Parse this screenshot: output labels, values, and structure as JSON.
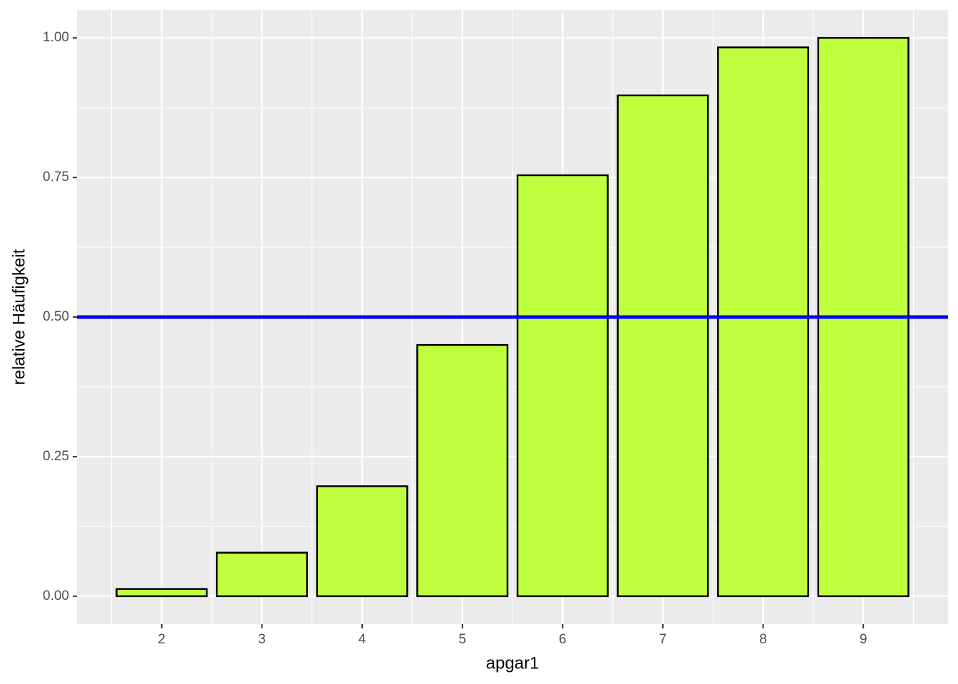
{
  "chart_data": {
    "type": "bar",
    "x_label": "apgar1",
    "y_label": "relative Häufigkeit",
    "x": [
      2,
      3,
      4,
      5,
      6,
      7,
      8,
      9
    ],
    "values": [
      0.013,
      0.078,
      0.197,
      0.45,
      0.754,
      0.897,
      0.983,
      1.0
    ],
    "color": "#c0ff3e",
    "edge_color": "#000000",
    "xlim": [
      1.155,
      9.845
    ],
    "xticks": [
      2,
      3,
      4,
      5,
      6,
      7,
      8,
      9
    ],
    "ylim": [
      -0.05,
      1.05
    ],
    "yticks": [
      {
        "value": 0,
        "label": "0.00"
      },
      {
        "value": 0.25,
        "label": "0.25"
      },
      {
        "value": 0.5,
        "label": "0.50"
      },
      {
        "value": 0.75,
        "label": "0.75"
      },
      {
        "value": 1.0,
        "label": "1.00"
      }
    ],
    "hline": 0.5,
    "hline_color": "#0000ff",
    "grid": true
  }
}
